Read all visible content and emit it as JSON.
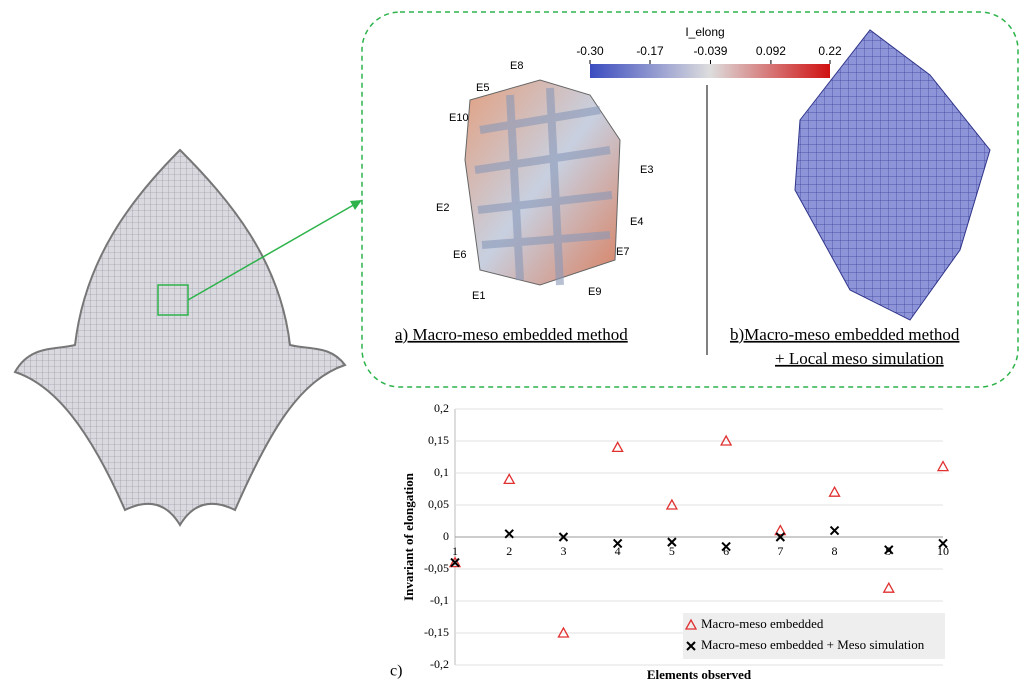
{
  "figure": {
    "panel_a": "a)  Macro-meso embedded method",
    "panel_b_line1": "b)Macro-meso embedded method",
    "panel_b_line2": "+ Local meso simulation",
    "elements": [
      "E1",
      "E2",
      "E3",
      "E4",
      "E5",
      "E6",
      "E7",
      "E8",
      "E9",
      "E10"
    ],
    "colorbar": {
      "title": "I_elong",
      "ticks": [
        {
          "value": -0.3,
          "label": "-0.30"
        },
        {
          "value": -0.17,
          "label": "-0.17"
        },
        {
          "value": -0.039,
          "label": "-0.039"
        },
        {
          "value": 0.092,
          "label": "0.092"
        },
        {
          "value": 0.22,
          "label": "0.22"
        }
      ]
    }
  },
  "chart_data": {
    "type": "scatter",
    "panel_label": "c)",
    "x_label": "Elements observed",
    "y_label": "Invariant of elongation",
    "categories": [
      "1",
      "2",
      "3",
      "4",
      "5",
      "6",
      "7",
      "8",
      "9",
      "10"
    ],
    "series": [
      {
        "name": "Macro-meso embedded",
        "color": "#e03030",
        "marker": "triangle",
        "values": [
          -0.04,
          0.09,
          -0.15,
          0.14,
          0.05,
          0.15,
          0.01,
          0.07,
          -0.08,
          0.11
        ]
      },
      {
        "name": "Macro-meso embedded + Meso simulation",
        "color": "#000000",
        "marker": "cross",
        "values": [
          -0.04,
          0.005,
          0,
          -0.01,
          -0.008,
          -0.015,
          0,
          0.01,
          -0.02,
          -0.01
        ]
      }
    ],
    "ylim": [
      -0.2,
      0.2
    ],
    "yticks": [
      {
        "value": -0.2,
        "label": "-0,2"
      },
      {
        "value": -0.15,
        "label": "-0,15"
      },
      {
        "value": -0.1,
        "label": "-0,1"
      },
      {
        "value": -0.05,
        "label": "-0,05"
      },
      0,
      {
        "value": 0.05,
        "label": "0,05"
      },
      {
        "value": 0.1,
        "label": "0,1"
      },
      {
        "value": 0.15,
        "label": "0,15"
      },
      {
        "value": 0.2,
        "label": "0,2"
      }
    ],
    "grid": true,
    "legend": "lower right"
  }
}
